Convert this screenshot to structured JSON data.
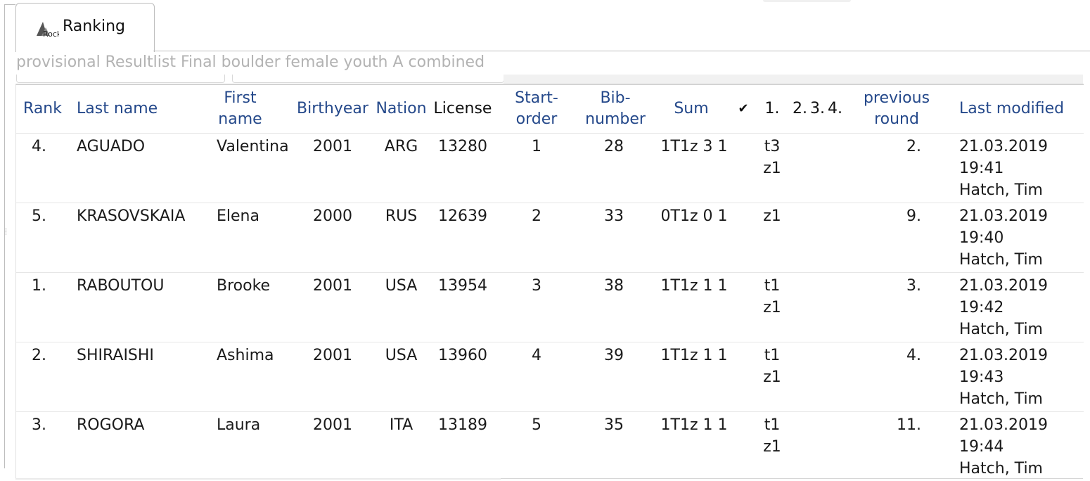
{
  "tab": {
    "label": "Ranking",
    "icon": "digrock-logo-icon",
    "logo_text": "Rock"
  },
  "result_title": "provisional Resultlist Final boulder female youth A combined",
  "columns": {
    "rank": "Rank",
    "last_name": "Last name",
    "first_name": "First name",
    "birthyear": "Birthyear",
    "nation": "Nation",
    "license": "License",
    "start_order": "Start-order",
    "bib_number": "Bib-number",
    "sum": "Sum",
    "check": "✔",
    "boulder_1": "1.",
    "boulder_2": "2.",
    "boulder_3": "3.",
    "boulder_4": "4.",
    "previous_round": "previous round",
    "last_modified": "Last modified"
  },
  "colors": {
    "header_text": "#24488a",
    "title_grey": "#b3b3b3",
    "border": "#bdbdbd"
  },
  "rows": [
    {
      "rank": "4.",
      "last_name": "AGUADO",
      "first_name": "Valentina",
      "birthyear": "2001",
      "nation": "ARG",
      "license": "13280",
      "start_order": "1",
      "bib_number": "28",
      "sum": "1T1z 3 1",
      "boulder_1": "t3 z1",
      "previous_round": "2.",
      "modified_date": "21.03.2019",
      "modified_time": "19:41",
      "modified_by": "Hatch, Tim"
    },
    {
      "rank": "5.",
      "last_name": "KRASOVSKAIA",
      "first_name": "Elena",
      "birthyear": "2000",
      "nation": "RUS",
      "license": "12639",
      "start_order": "2",
      "bib_number": "33",
      "sum": "0T1z 0 1",
      "boulder_1": "z1",
      "previous_round": "9.",
      "modified_date": "21.03.2019",
      "modified_time": "19:40",
      "modified_by": "Hatch, Tim"
    },
    {
      "rank": "1.",
      "last_name": "RABOUTOU",
      "first_name": "Brooke",
      "birthyear": "2001",
      "nation": "USA",
      "license": "13954",
      "start_order": "3",
      "bib_number": "38",
      "sum": "1T1z 1 1",
      "boulder_1": "t1 z1",
      "previous_round": "3.",
      "modified_date": "21.03.2019",
      "modified_time": "19:42",
      "modified_by": "Hatch, Tim"
    },
    {
      "rank": "2.",
      "last_name": "SHIRAISHI",
      "first_name": "Ashima",
      "birthyear": "2001",
      "nation": "USA",
      "license": "13960",
      "start_order": "4",
      "bib_number": "39",
      "sum": "1T1z 1 1",
      "boulder_1": "t1 z1",
      "previous_round": "4.",
      "modified_date": "21.03.2019",
      "modified_time": "19:43",
      "modified_by": "Hatch, Tim"
    },
    {
      "rank": "3.",
      "last_name": "ROGORA",
      "first_name": "Laura",
      "birthyear": "2001",
      "nation": "ITA",
      "license": "13189",
      "start_order": "5",
      "bib_number": "35",
      "sum": "1T1z 1 1",
      "boulder_1": "t1 z1",
      "previous_round": "11.",
      "modified_date": "21.03.2019",
      "modified_time": "19:44",
      "modified_by": "Hatch, Tim"
    }
  ]
}
